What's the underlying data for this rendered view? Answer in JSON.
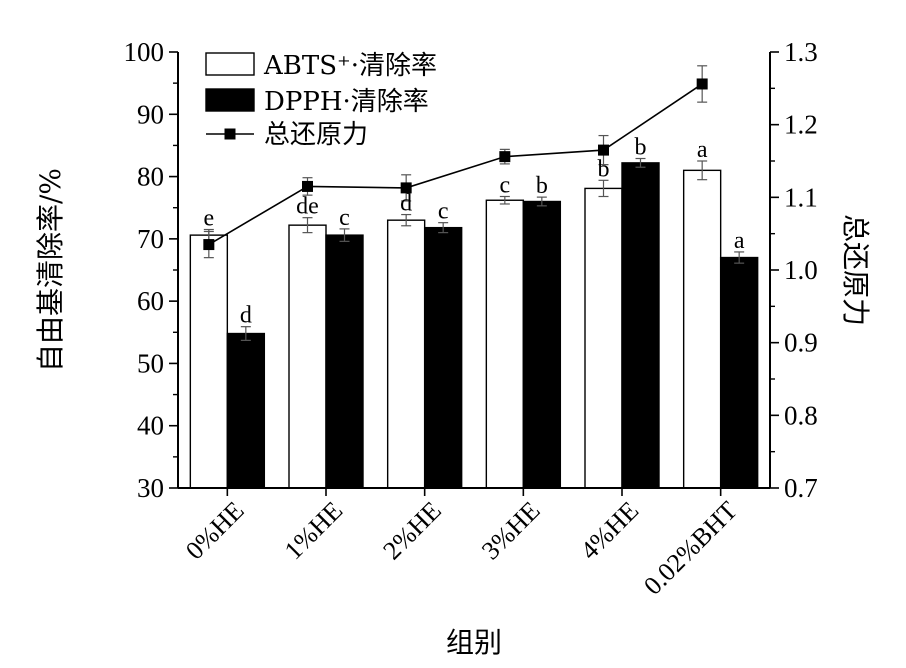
{
  "chart_data": {
    "type": "bar",
    "categories": [
      "0%HE",
      "1%HE",
      "2%HE",
      "3%HE",
      "4%HE",
      "0.02%BHT"
    ],
    "xlabel": "组别",
    "ylabel": "自由基清除率/%",
    "y2label": "总还原力",
    "ylim": [
      30,
      100
    ],
    "y2lim": [
      0.7,
      1.3
    ],
    "yticks": [
      "30",
      "40",
      "50",
      "60",
      "70",
      "80",
      "90",
      "100"
    ],
    "y2ticks": [
      "0.7",
      "0.8",
      "0.9",
      "1.0",
      "1.1",
      "1.2",
      "1.3"
    ],
    "legend_position": "top-left",
    "series": [
      {
        "name": "ABTS⁺·清除率",
        "kind": "bar",
        "fill": "#ffffff",
        "values": [
          70.6,
          72.2,
          73.0,
          76.2,
          78.1,
          81.0
        ],
        "errors": [
          0.9,
          1.2,
          0.9,
          0.6,
          1.3,
          1.5
        ],
        "labels": [
          "e",
          "de",
          "d",
          "c",
          "b",
          "a"
        ]
      },
      {
        "name": "DPPH·清除率",
        "kind": "bar",
        "fill": "#000000",
        "values": [
          54.8,
          70.6,
          71.8,
          76.0,
          82.2,
          67.0
        ],
        "errors": [
          1.1,
          1.0,
          0.8,
          0.7,
          0.7,
          0.9
        ],
        "labels": [
          "d",
          "c",
          "c",
          "b",
          "b",
          "a"
        ]
      },
      {
        "name": "总还原力",
        "kind": "line",
        "axis": "right",
        "values": [
          1.035,
          1.115,
          1.113,
          1.156,
          1.165,
          1.256
        ],
        "errors": [
          0.018,
          0.012,
          0.018,
          0.01,
          0.02,
          0.025
        ]
      }
    ]
  }
}
